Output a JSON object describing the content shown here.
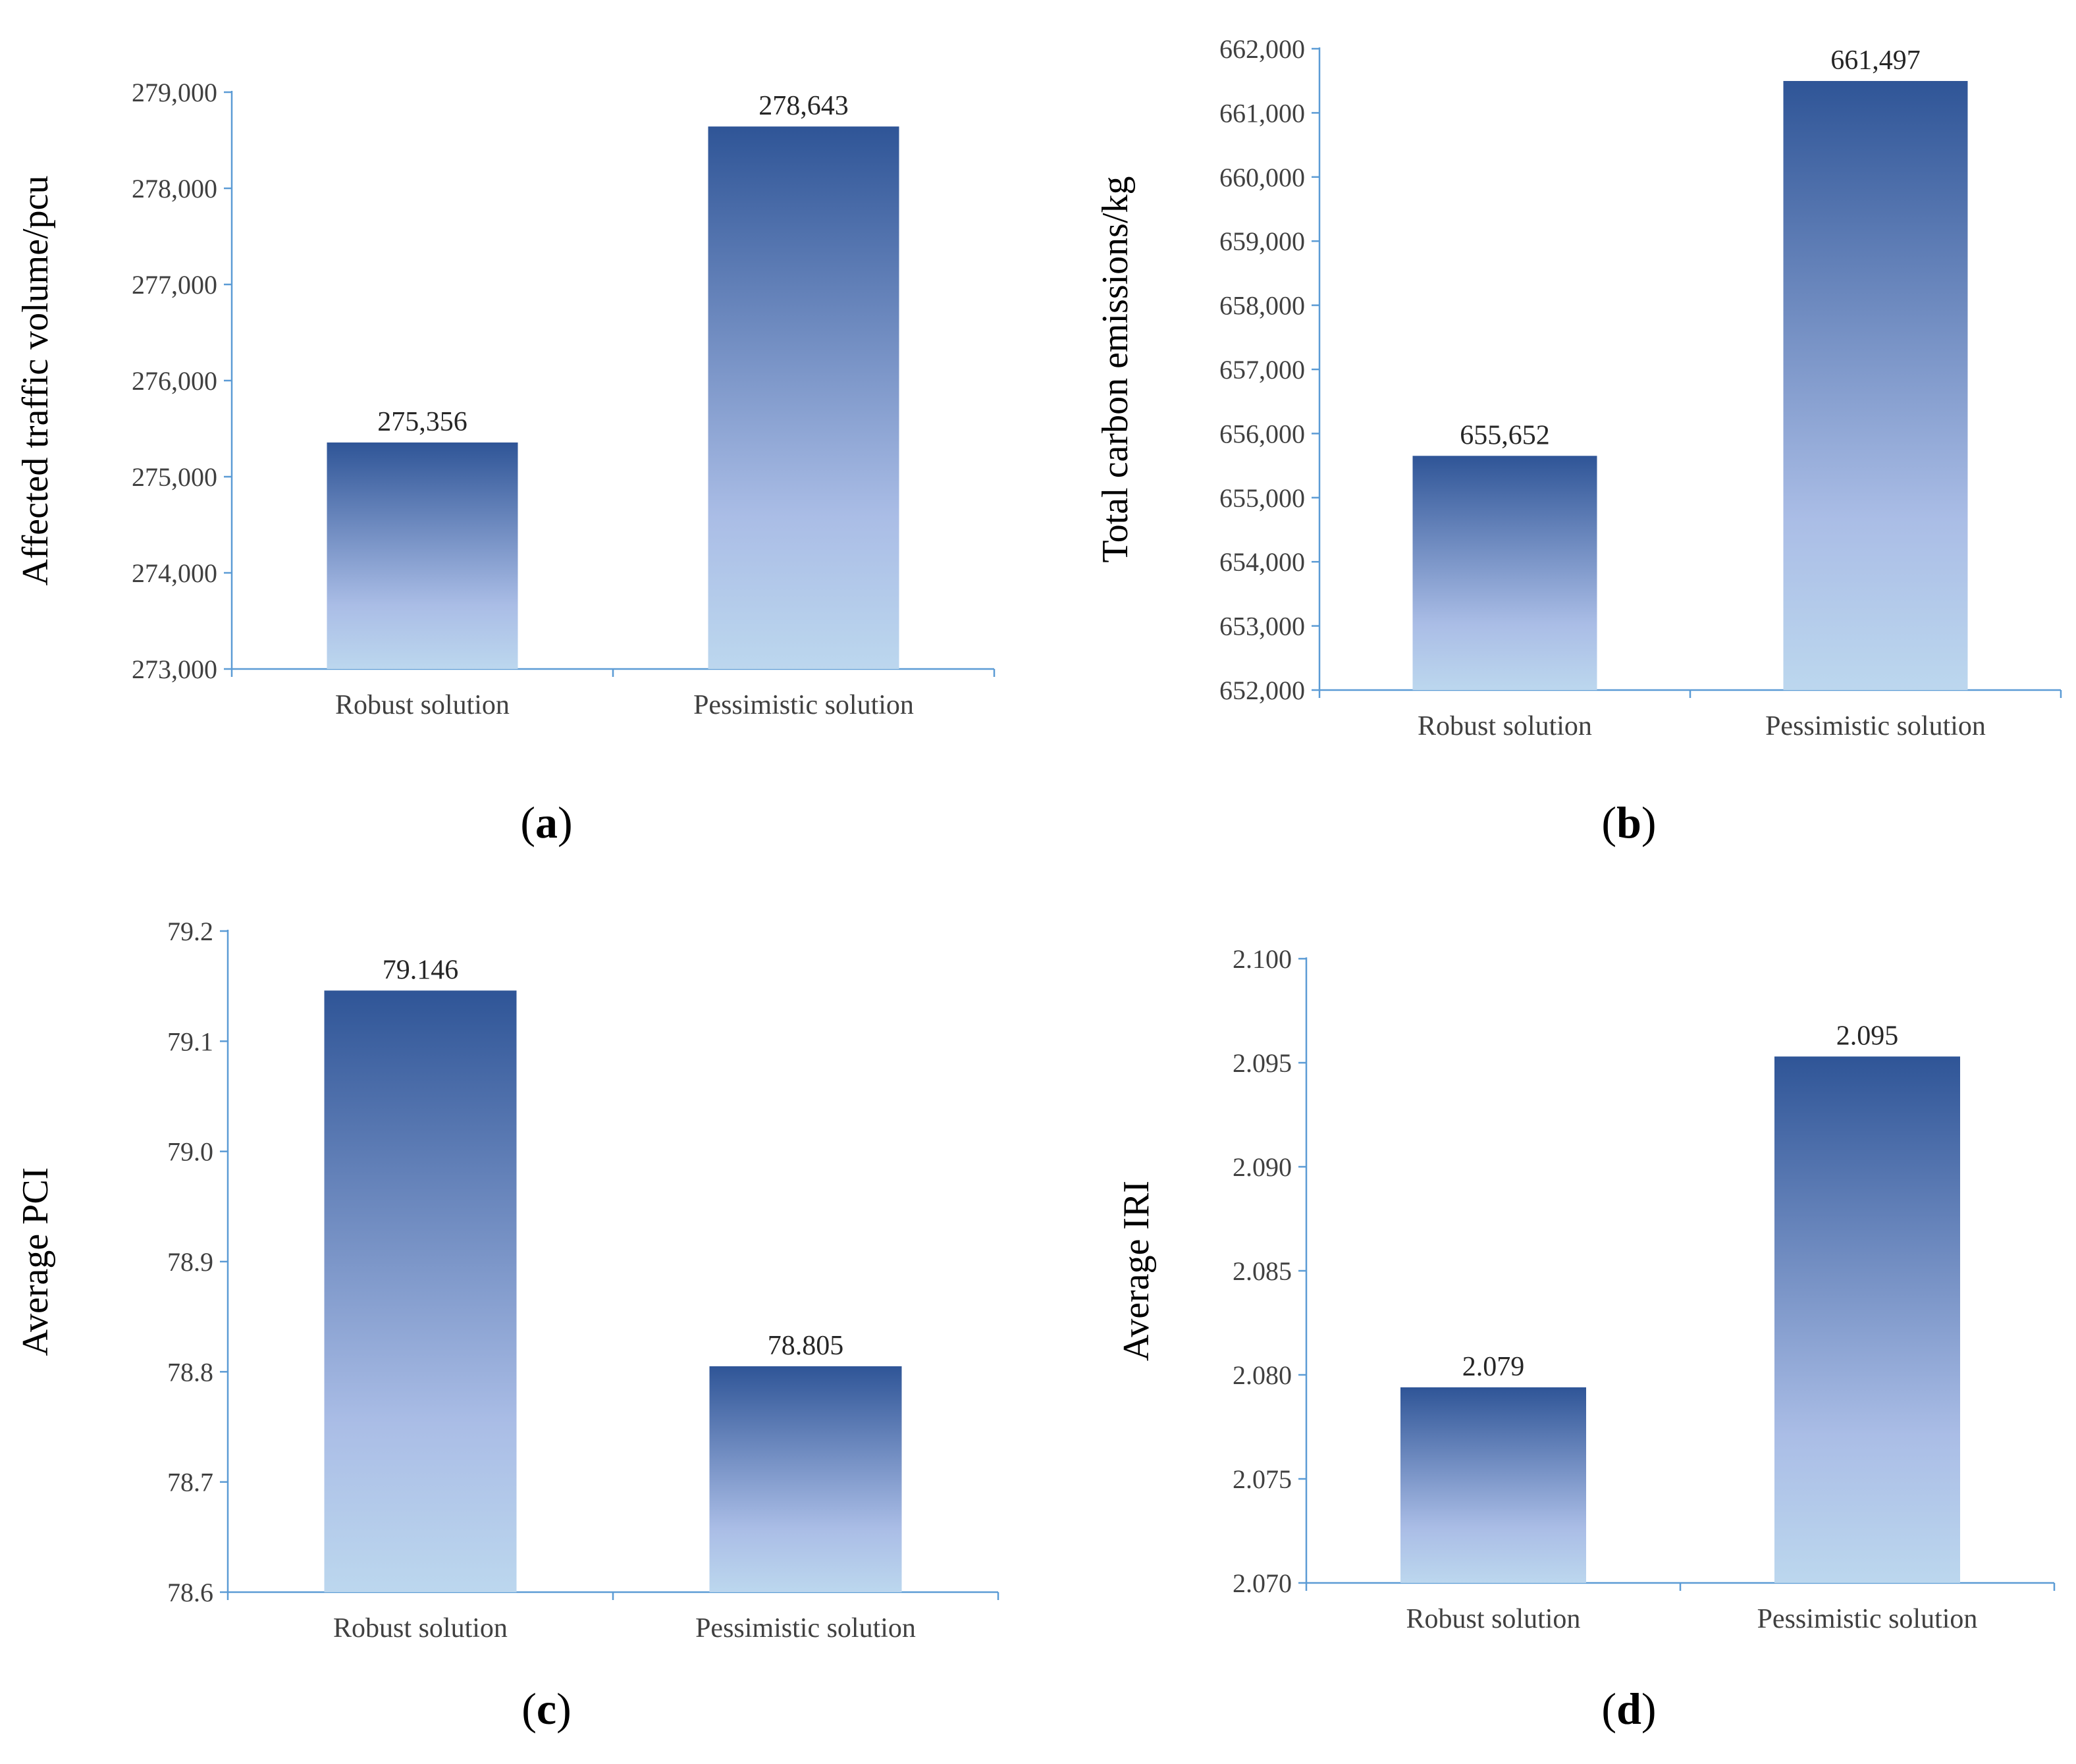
{
  "chart_data": [
    {
      "type": "bar",
      "panel": "(a)",
      "panel_letter": "a",
      "ylabel": "Affected traffic volume/pcu",
      "categories": [
        "Robust solution",
        "Pessimistic solution"
      ],
      "values": [
        275356,
        278643
      ],
      "value_labels": [
        "275,356",
        "278,643"
      ],
      "ylim": [
        273000,
        279000
      ],
      "yticks": [
        273000,
        274000,
        275000,
        276000,
        277000,
        278000,
        279000
      ],
      "ytick_labels": [
        "273,000",
        "274,000",
        "275,000",
        "276,000",
        "277,000",
        "278,000",
        "279,000"
      ],
      "grid": false
    },
    {
      "type": "bar",
      "panel": "(b)",
      "panel_letter": "b",
      "ylabel": "Total carbon emissions/kg",
      "categories": [
        "Robust solution",
        "Pessimistic solution"
      ],
      "values": [
        655652,
        661497
      ],
      "value_labels": [
        "655,652",
        "661,497"
      ],
      "ylim": [
        652000,
        662000
      ],
      "yticks": [
        652000,
        653000,
        654000,
        655000,
        656000,
        657000,
        658000,
        659000,
        660000,
        661000,
        662000
      ],
      "ytick_labels": [
        "652,000",
        "653,000",
        "654,000",
        "655,000",
        "656,000",
        "657,000",
        "658,000",
        "659,000",
        "660,000",
        "661,000",
        "662,000"
      ],
      "grid": false
    },
    {
      "type": "bar",
      "panel": "(c)",
      "panel_letter": "c",
      "ylabel": "Average PCI",
      "categories": [
        "Robust solution",
        "Pessimistic solution"
      ],
      "values": [
        79.146,
        78.805
      ],
      "value_labels": [
        "79.146",
        "78.805"
      ],
      "ylim": [
        78.6,
        79.2
      ],
      "yticks": [
        78.6,
        78.7,
        78.8,
        78.9,
        79.0,
        79.1,
        79.2
      ],
      "ytick_labels": [
        "78.6",
        "78.7",
        "78.8",
        "78.9",
        "79.0",
        "79.1",
        "79.2"
      ],
      "grid": false
    },
    {
      "type": "bar",
      "panel": "(d)",
      "panel_letter": "d",
      "ylabel": "Average IRI",
      "categories": [
        "Robust solution",
        "Pessimistic solution"
      ],
      "values": [
        2.0794,
        2.0953
      ],
      "value_labels": [
        "2.079",
        "2.095"
      ],
      "ylim": [
        2.07,
        2.1
      ],
      "yticks": [
        2.07,
        2.075,
        2.08,
        2.085,
        2.09,
        2.095,
        2.1
      ],
      "ytick_labels": [
        "2.070",
        "2.075",
        "2.080",
        "2.085",
        "2.090",
        "2.095",
        "2.100"
      ],
      "grid": false
    }
  ],
  "style": {
    "axis_color": "#5b9bd5",
    "bar_top_color": "#2f5597",
    "bar_mid_color": "#aabde6",
    "bar_bottom_color": "#bcd7ee"
  }
}
